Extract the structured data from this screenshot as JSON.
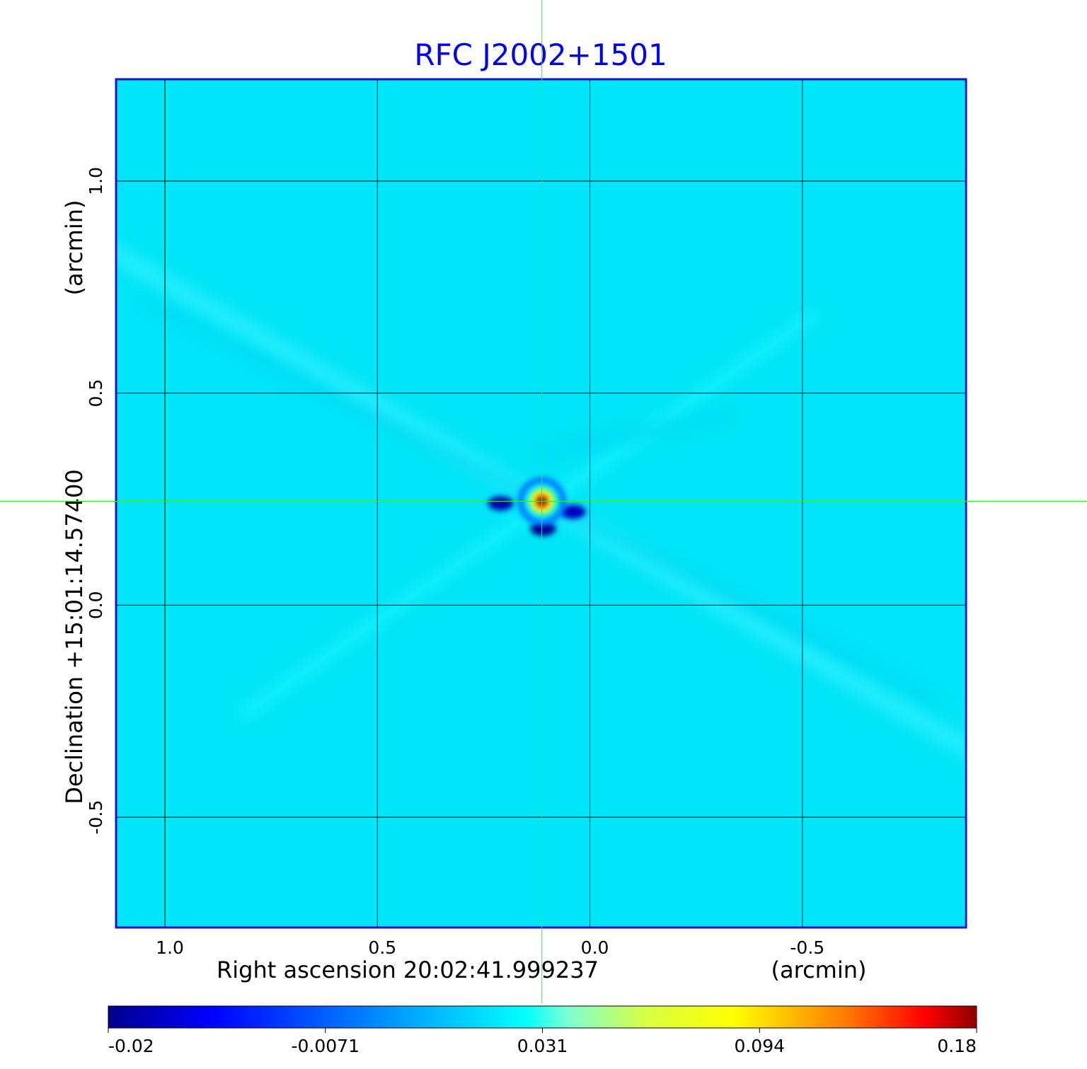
{
  "chart_data": {
    "type": "heatmap",
    "title": "RFC J2002+1501",
    "xlabel": "Right ascension  20:02:41.999237",
    "xunit": "(arcmin)",
    "ylabel": "Declination  +15:01:14.57400",
    "yunit": "(arcmin)",
    "x_ticks": [
      1.0,
      0.5,
      0.0,
      -0.5
    ],
    "x_tick_labels": [
      "1.0",
      "0.5",
      "0.0",
      "-0.5"
    ],
    "y_ticks": [
      1.0,
      0.5,
      0.0,
      -0.5
    ],
    "y_tick_labels": [
      "1.0",
      "0.5",
      "0.0",
      "-0.5"
    ],
    "xlim": [
      1.115,
      -0.885
    ],
    "ylim": [
      -0.76,
      1.24
    ],
    "grid": true,
    "crosshair": {
      "x": 0.113,
      "y": 0.245
    },
    "colorbar": {
      "ticks": [
        -0.02,
        -0.0071,
        0.031,
        0.094,
        0.18
      ],
      "tick_labels": [
        "-0.02",
        "-0.0071",
        "0.031",
        "0.094",
        "0.18"
      ],
      "range": [
        -0.02,
        0.18
      ]
    },
    "features": {
      "peak": {
        "x": 0.113,
        "y": 0.245,
        "value": 0.18
      },
      "negative_lobes": [
        {
          "x": 0.11,
          "y": 0.18,
          "value": -0.02
        },
        {
          "x": 0.21,
          "y": 0.24,
          "value": -0.012
        },
        {
          "x": 0.04,
          "y": 0.22,
          "value": -0.01
        }
      ],
      "background_value": 0.0
    }
  },
  "colors": {
    "title": "#0000ee",
    "frame": "#1515d6",
    "background_field": "#00e5f7",
    "crosshair": "#33ee33",
    "grid": "#000000"
  }
}
